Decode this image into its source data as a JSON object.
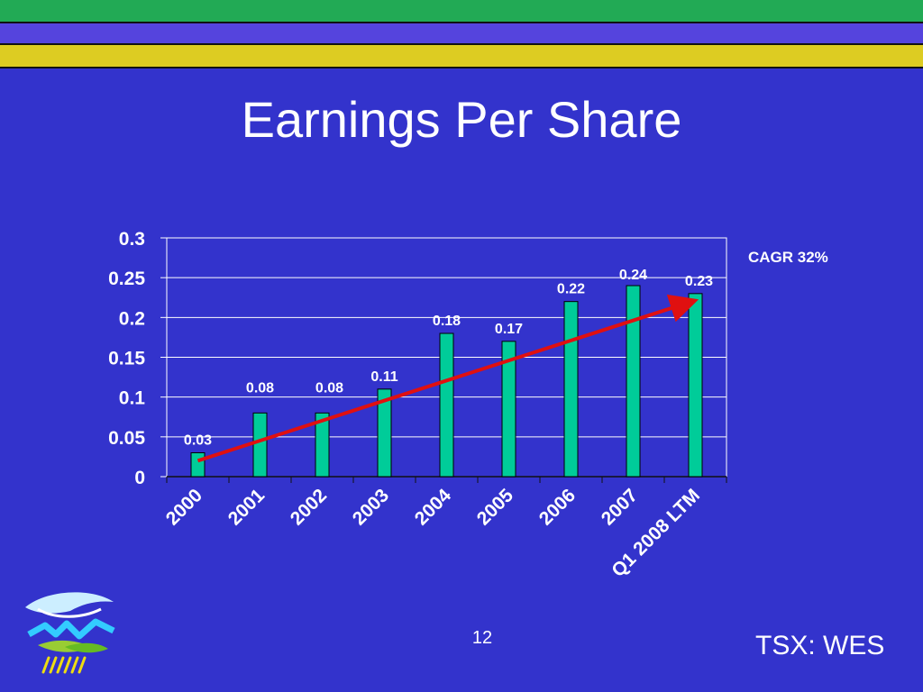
{
  "slide": {
    "title": "Earnings Per Share",
    "annotation": "CAGR 32%",
    "page_number": "12",
    "ticker": "TSX: WES"
  },
  "colors": {
    "background": "#3333CC",
    "bar": "#00CC99",
    "trend": "#E01010",
    "stripe_top": "#22AA55",
    "stripe_middle": "#5544DD",
    "stripe_bottom": "#DDCC22"
  },
  "logo": {
    "icon": "company-logo-icon"
  },
  "chart_data": {
    "type": "bar",
    "categories": [
      "2000",
      "2001",
      "2002",
      "2003",
      "2004",
      "2005",
      "2006",
      "2007",
      "Q1 2008 LTM"
    ],
    "values": [
      0.03,
      0.08,
      0.08,
      0.11,
      0.18,
      0.17,
      0.22,
      0.24,
      0.23
    ],
    "data_labels": [
      "0.03",
      "0.08",
      "0.08",
      "0.11",
      "0.18",
      "0.17",
      "0.22",
      "0.24",
      "0.23"
    ],
    "y_ticks": [
      "0",
      "0.05",
      "0.1",
      "0.15",
      "0.2",
      "0.25",
      "0.3"
    ],
    "ylim": [
      0,
      0.3
    ],
    "grid": true,
    "trend_line": {
      "from": [
        "2000",
        0.02
      ],
      "to": [
        "Q1 2008 LTM",
        0.22
      ],
      "arrow": true
    },
    "title": "",
    "xlabel": "",
    "ylabel": ""
  }
}
